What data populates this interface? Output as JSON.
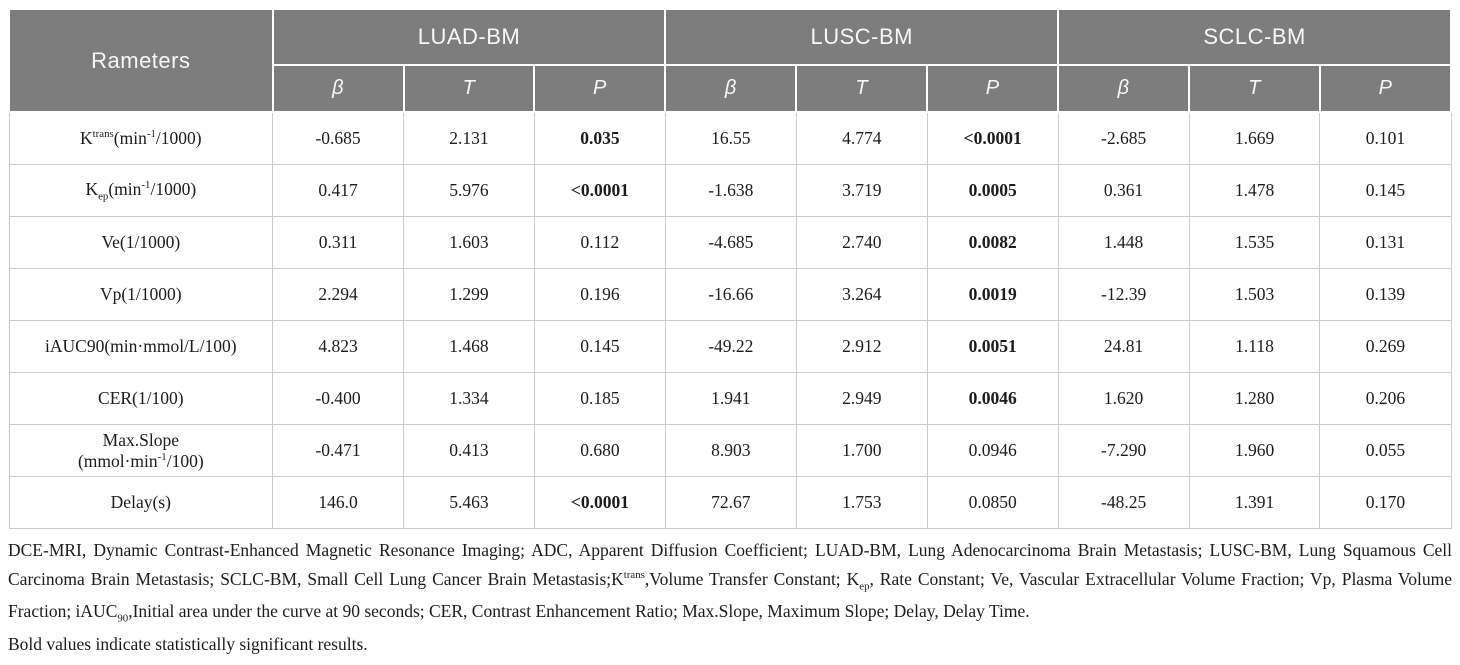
{
  "colors": {
    "header_bg": "#7d7d7d",
    "header_text": "#f7f7f5",
    "cell_border": "#cbcbcb",
    "body_text": "#1c1c1c",
    "page_bg": "#ffffff"
  },
  "table": {
    "header": {
      "param_col": "Rameters",
      "groups": [
        "LUAD-BM",
        "LUSC-BM",
        "SCLC-BM"
      ],
      "sub_cols": [
        "β",
        "T",
        "P"
      ]
    },
    "rows": [
      {
        "param": [
          {
            "t": "K"
          },
          {
            "sup": "trans"
          },
          {
            "t": "(min"
          },
          {
            "sup": "-1"
          },
          {
            "t": "/1000)"
          }
        ],
        "values": [
          "-0.685",
          "2.131",
          "0.035",
          "16.55",
          "4.774",
          "<0.0001",
          "-2.685",
          "1.669",
          "0.101"
        ],
        "bold": [
          2,
          5
        ]
      },
      {
        "param": [
          {
            "t": "K"
          },
          {
            "sub": "ep"
          },
          {
            "t": "(min"
          },
          {
            "sup": "-1"
          },
          {
            "t": "/1000)"
          }
        ],
        "values": [
          "0.417",
          "5.976",
          "<0.0001",
          "-1.638",
          "3.719",
          "0.0005",
          "0.361",
          "1.478",
          "0.145"
        ],
        "bold": [
          2,
          5
        ]
      },
      {
        "param": [
          {
            "t": "Ve(1/1000)"
          }
        ],
        "values": [
          "0.311",
          "1.603",
          "0.112",
          "-4.685",
          "2.740",
          "0.0082",
          "1.448",
          "1.535",
          "0.131"
        ],
        "bold": [
          5
        ]
      },
      {
        "param": [
          {
            "t": "Vp(1/1000)"
          }
        ],
        "values": [
          "2.294",
          "1.299",
          "0.196",
          "-16.66",
          "3.264",
          "0.0019",
          "-12.39",
          "1.503",
          "0.139"
        ],
        "bold": [
          5
        ]
      },
      {
        "param": [
          {
            "t": "iAUC90(min·mmol/L/100)"
          }
        ],
        "values": [
          "4.823",
          "1.468",
          "0.145",
          "-49.22",
          "2.912",
          "0.0051",
          "24.81",
          "1.118",
          "0.269"
        ],
        "bold": [
          5
        ]
      },
      {
        "param": [
          {
            "t": "CER(1/100)"
          }
        ],
        "values": [
          "-0.400",
          "1.334",
          "0.185",
          "1.941",
          "2.949",
          "0.0046",
          "1.620",
          "1.280",
          "0.206"
        ],
        "bold": [
          5
        ]
      },
      {
        "param": [
          {
            "t": "Max.Slope"
          },
          {
            "br": true
          },
          {
            "t": "(mmol·min"
          },
          {
            "sup": "-1"
          },
          {
            "t": "/100)"
          }
        ],
        "values": [
          "-0.471",
          "0.413",
          "0.680",
          "8.903",
          "1.700",
          "0.0946",
          "-7.290",
          "1.960",
          "0.055"
        ],
        "bold": []
      },
      {
        "param": [
          {
            "t": "Delay(s)"
          }
        ],
        "values": [
          "146.0",
          "5.463",
          "<0.0001",
          "72.67",
          "1.753",
          "0.0850",
          "-48.25",
          "1.391",
          "0.170"
        ],
        "bold": [
          2
        ]
      }
    ]
  },
  "footnotes": {
    "main": [
      {
        "t": "DCE-MRI, Dynamic Contrast-Enhanced Magnetic Resonance Imaging; ADC, Apparent Diffusion Coefficient; LUAD-BM, Lung Adenocarcinoma Brain Metastasis; LUSC-BM, Lung Squamous Cell Carcinoma Brain Metastasis; SCLC-BM, Small Cell Lung Cancer Brain Metastasis;K"
      },
      {
        "sup": "trans"
      },
      {
        "t": ",Volume Transfer Constant; K"
      },
      {
        "sub": "ep"
      },
      {
        "t": ", Rate Constant; Ve, Vascular Extracellular Volume Fraction; Vp, Plasma Volume Fraction; iAUC"
      },
      {
        "sub": "90"
      },
      {
        "t": ",Initial area under the curve at 90 seconds; CER, Contrast Enhancement Ratio; Max.Slope, Maximum Slope; Delay, Delay Time."
      }
    ],
    "bold_note": "Bold values indicate statistically significant results."
  }
}
